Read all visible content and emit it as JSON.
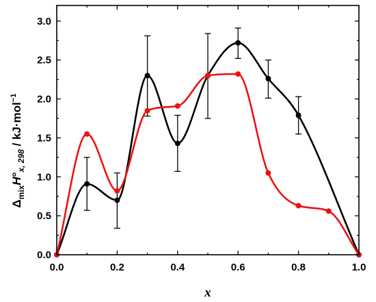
{
  "chart_data": {
    "type": "line",
    "xlabel": "x",
    "ylabel": {
      "delta": "Δ",
      "mix": "mix",
      "H": "H",
      "degree": "°",
      "sub": "x, 298",
      "unit": " / kJ·mol",
      "exp": "−1"
    },
    "xlim": [
      0.0,
      1.0
    ],
    "ylim": [
      0.0,
      3.2
    ],
    "x_ticks": [
      "0.0",
      "0.2",
      "0.4",
      "0.6",
      "0.8",
      "1.0"
    ],
    "y_ticks": [
      "0.0",
      "0.5",
      "1.0",
      "1.5",
      "2.0",
      "2.5",
      "3.0"
    ],
    "grid": false,
    "series": [
      {
        "color": "#000000",
        "points": [
          {
            "x": 0.0,
            "y": 0.0
          },
          {
            "x": 0.1,
            "y": 0.91,
            "err_low": 0.57,
            "err_high": 1.25
          },
          {
            "x": 0.2,
            "y": 0.7,
            "err_low": 0.34,
            "err_high": 1.05
          },
          {
            "x": 0.3,
            "y": 2.3,
            "err_low": 1.78,
            "err_high": 2.81
          },
          {
            "x": 0.4,
            "y": 1.43,
            "err_low": 1.07,
            "err_high": 1.79
          },
          {
            "x": 0.5,
            "y": 2.3,
            "err_low": 1.75,
            "err_high": 2.84
          },
          {
            "x": 0.6,
            "y": 2.72,
            "err_low": 2.52,
            "err_high": 2.91
          },
          {
            "x": 0.7,
            "y": 2.26,
            "err_low": 2.01,
            "err_high": 2.5
          },
          {
            "x": 0.8,
            "y": 1.79,
            "err_low": 1.55,
            "err_high": 2.03
          },
          {
            "x": 1.0,
            "y": 0.0
          }
        ]
      },
      {
        "color": "#ee1111",
        "points": [
          {
            "x": 0.0,
            "y": 0.0
          },
          {
            "x": 0.1,
            "y": 1.55
          },
          {
            "x": 0.2,
            "y": 0.82
          },
          {
            "x": 0.3,
            "y": 1.85
          },
          {
            "x": 0.4,
            "y": 1.91
          },
          {
            "x": 0.5,
            "y": 2.3
          },
          {
            "x": 0.6,
            "y": 2.32
          },
          {
            "x": 0.7,
            "y": 1.05
          },
          {
            "x": 0.8,
            "y": 0.63
          },
          {
            "x": 0.9,
            "y": 0.56
          },
          {
            "x": 1.0,
            "y": 0.0
          }
        ]
      }
    ]
  }
}
